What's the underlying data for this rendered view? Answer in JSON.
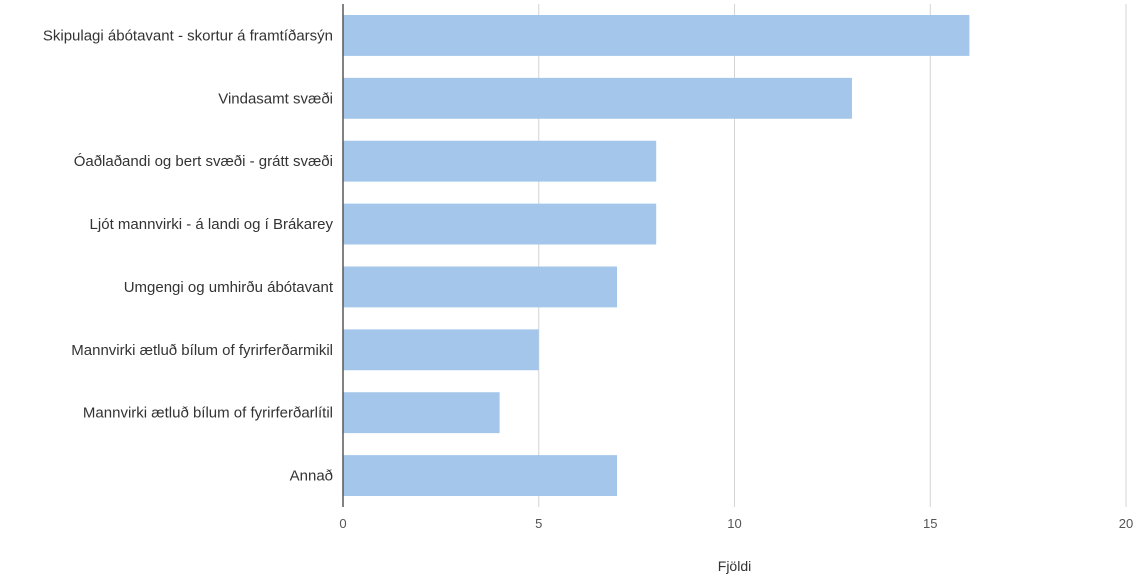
{
  "chart_data": {
    "type": "bar",
    "orientation": "horizontal",
    "categories": [
      "Skipulagi ábótavant - skortur á framtíðarsýn",
      "Vindasamt svæði",
      "Óaðlaðandi og bert svæði  - grátt svæði",
      "Ljót mannvirki - á landi og í Brákarey",
      "Umgengi og umhirðu ábótavant",
      "Mannvirki ætluð bílum of fyrirferðarmikil",
      "Mannvirki ætluð bílum of fyrirferðarlítil",
      "Annað"
    ],
    "values": [
      16,
      13,
      8,
      8,
      7,
      5,
      4,
      7
    ],
    "title": "",
    "xlabel": "Fjöldi",
    "ylabel": "",
    "xlim": [
      0,
      20
    ],
    "xticks": [
      "0",
      "5",
      "10",
      "15",
      "20"
    ],
    "grid": "vertical",
    "legend": "none",
    "bar_color": "#a3c6ea",
    "grid_color": "#d4d4d4",
    "axis_color": "#595959"
  }
}
